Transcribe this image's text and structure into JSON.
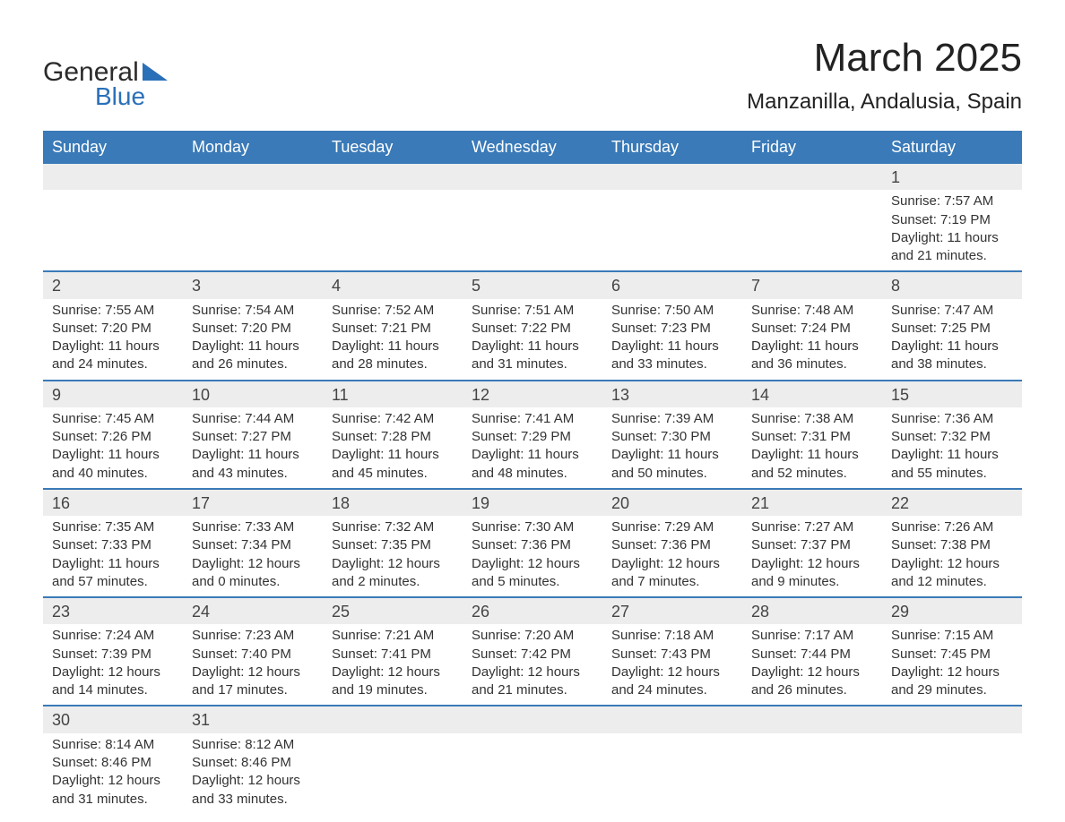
{
  "logo": {
    "text1": "General",
    "text2": "Blue",
    "color_text": "#2b2b2b",
    "color_accent": "#2a70b8"
  },
  "title": "March 2025",
  "location": "Manzanilla, Andalusia, Spain",
  "weekdays": [
    "Sunday",
    "Monday",
    "Tuesday",
    "Wednesday",
    "Thursday",
    "Friday",
    "Saturday"
  ],
  "colors": {
    "header_bg": "#3a7ab8",
    "header_text": "#ffffff",
    "row_gray": "#ededed",
    "border": "#3a7ab8",
    "text": "#333333",
    "background": "#ffffff"
  },
  "typography": {
    "title_fontsize": 44,
    "location_fontsize": 24,
    "weekday_fontsize": 18,
    "daynum_fontsize": 18,
    "detail_fontsize": 15
  },
  "first_day_col": 6,
  "days": [
    {
      "n": 1,
      "sunrise": "7:57 AM",
      "sunset": "7:19 PM",
      "dl1": "11 hours",
      "dl2": "and 21 minutes."
    },
    {
      "n": 2,
      "sunrise": "7:55 AM",
      "sunset": "7:20 PM",
      "dl1": "11 hours",
      "dl2": "and 24 minutes."
    },
    {
      "n": 3,
      "sunrise": "7:54 AM",
      "sunset": "7:20 PM",
      "dl1": "11 hours",
      "dl2": "and 26 minutes."
    },
    {
      "n": 4,
      "sunrise": "7:52 AM",
      "sunset": "7:21 PM",
      "dl1": "11 hours",
      "dl2": "and 28 minutes."
    },
    {
      "n": 5,
      "sunrise": "7:51 AM",
      "sunset": "7:22 PM",
      "dl1": "11 hours",
      "dl2": "and 31 minutes."
    },
    {
      "n": 6,
      "sunrise": "7:50 AM",
      "sunset": "7:23 PM",
      "dl1": "11 hours",
      "dl2": "and 33 minutes."
    },
    {
      "n": 7,
      "sunrise": "7:48 AM",
      "sunset": "7:24 PM",
      "dl1": "11 hours",
      "dl2": "and 36 minutes."
    },
    {
      "n": 8,
      "sunrise": "7:47 AM",
      "sunset": "7:25 PM",
      "dl1": "11 hours",
      "dl2": "and 38 minutes."
    },
    {
      "n": 9,
      "sunrise": "7:45 AM",
      "sunset": "7:26 PM",
      "dl1": "11 hours",
      "dl2": "and 40 minutes."
    },
    {
      "n": 10,
      "sunrise": "7:44 AM",
      "sunset": "7:27 PM",
      "dl1": "11 hours",
      "dl2": "and 43 minutes."
    },
    {
      "n": 11,
      "sunrise": "7:42 AM",
      "sunset": "7:28 PM",
      "dl1": "11 hours",
      "dl2": "and 45 minutes."
    },
    {
      "n": 12,
      "sunrise": "7:41 AM",
      "sunset": "7:29 PM",
      "dl1": "11 hours",
      "dl2": "and 48 minutes."
    },
    {
      "n": 13,
      "sunrise": "7:39 AM",
      "sunset": "7:30 PM",
      "dl1": "11 hours",
      "dl2": "and 50 minutes."
    },
    {
      "n": 14,
      "sunrise": "7:38 AM",
      "sunset": "7:31 PM",
      "dl1": "11 hours",
      "dl2": "and 52 minutes."
    },
    {
      "n": 15,
      "sunrise": "7:36 AM",
      "sunset": "7:32 PM",
      "dl1": "11 hours",
      "dl2": "and 55 minutes."
    },
    {
      "n": 16,
      "sunrise": "7:35 AM",
      "sunset": "7:33 PM",
      "dl1": "11 hours",
      "dl2": "and 57 minutes."
    },
    {
      "n": 17,
      "sunrise": "7:33 AM",
      "sunset": "7:34 PM",
      "dl1": "12 hours",
      "dl2": "and 0 minutes."
    },
    {
      "n": 18,
      "sunrise": "7:32 AM",
      "sunset": "7:35 PM",
      "dl1": "12 hours",
      "dl2": "and 2 minutes."
    },
    {
      "n": 19,
      "sunrise": "7:30 AM",
      "sunset": "7:36 PM",
      "dl1": "12 hours",
      "dl2": "and 5 minutes."
    },
    {
      "n": 20,
      "sunrise": "7:29 AM",
      "sunset": "7:36 PM",
      "dl1": "12 hours",
      "dl2": "and 7 minutes."
    },
    {
      "n": 21,
      "sunrise": "7:27 AM",
      "sunset": "7:37 PM",
      "dl1": "12 hours",
      "dl2": "and 9 minutes."
    },
    {
      "n": 22,
      "sunrise": "7:26 AM",
      "sunset": "7:38 PM",
      "dl1": "12 hours",
      "dl2": "and 12 minutes."
    },
    {
      "n": 23,
      "sunrise": "7:24 AM",
      "sunset": "7:39 PM",
      "dl1": "12 hours",
      "dl2": "and 14 minutes."
    },
    {
      "n": 24,
      "sunrise": "7:23 AM",
      "sunset": "7:40 PM",
      "dl1": "12 hours",
      "dl2": "and 17 minutes."
    },
    {
      "n": 25,
      "sunrise": "7:21 AM",
      "sunset": "7:41 PM",
      "dl1": "12 hours",
      "dl2": "and 19 minutes."
    },
    {
      "n": 26,
      "sunrise": "7:20 AM",
      "sunset": "7:42 PM",
      "dl1": "12 hours",
      "dl2": "and 21 minutes."
    },
    {
      "n": 27,
      "sunrise": "7:18 AM",
      "sunset": "7:43 PM",
      "dl1": "12 hours",
      "dl2": "and 24 minutes."
    },
    {
      "n": 28,
      "sunrise": "7:17 AM",
      "sunset": "7:44 PM",
      "dl1": "12 hours",
      "dl2": "and 26 minutes."
    },
    {
      "n": 29,
      "sunrise": "7:15 AM",
      "sunset": "7:45 PM",
      "dl1": "12 hours",
      "dl2": "and 29 minutes."
    },
    {
      "n": 30,
      "sunrise": "8:14 AM",
      "sunset": "8:46 PM",
      "dl1": "12 hours",
      "dl2": "and 31 minutes."
    },
    {
      "n": 31,
      "sunrise": "8:12 AM",
      "sunset": "8:46 PM",
      "dl1": "12 hours",
      "dl2": "and 33 minutes."
    }
  ],
  "labels": {
    "sunrise": "Sunrise: ",
    "sunset": "Sunset: ",
    "daylight": "Daylight: "
  }
}
